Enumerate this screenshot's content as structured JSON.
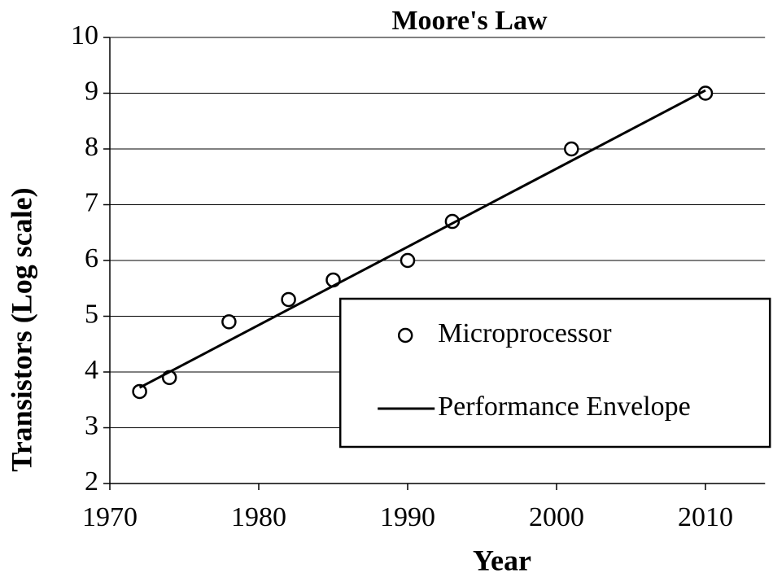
{
  "chart_data": {
    "type": "scatter",
    "title": "Moore's Law",
    "xlabel": "Year",
    "ylabel": "Transistors (Log scale)",
    "xlim": [
      1970,
      2014
    ],
    "xticks": [
      1970,
      1980,
      1990,
      2000,
      2010
    ],
    "ylim": [
      2,
      10
    ],
    "yticks": [
      2,
      3,
      4,
      5,
      6,
      7,
      8,
      9,
      10
    ],
    "grid": true,
    "legend": "lower right",
    "series": [
      {
        "name": "Microprocessor",
        "type": "scatter",
        "color": "#000000",
        "x": [
          1972,
          1974,
          1978,
          1982,
          1985,
          1990,
          1993,
          2001,
          2010
        ],
        "values": [
          3.65,
          3.9,
          4.9,
          5.3,
          5.65,
          6.0,
          6.7,
          8.0,
          9.0
        ]
      },
      {
        "name": "Performance Envelope",
        "type": "line",
        "color": "#000000",
        "x": [
          1972,
          2010
        ],
        "values": [
          3.72,
          9.05
        ]
      }
    ]
  }
}
